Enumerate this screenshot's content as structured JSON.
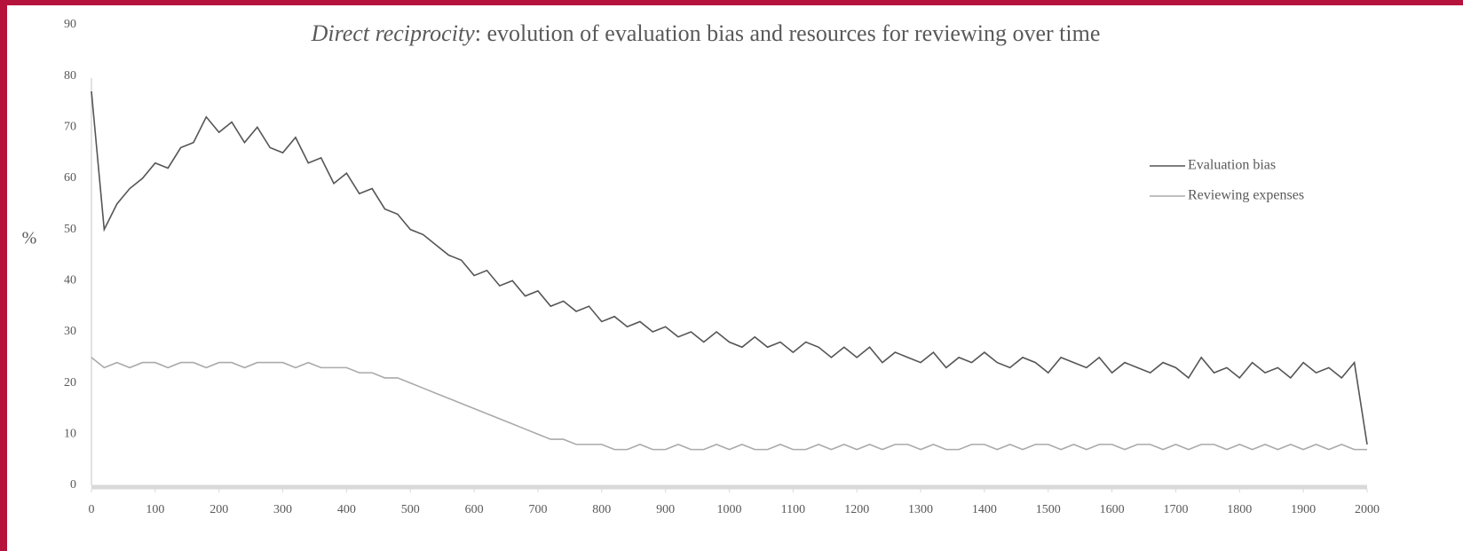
{
  "chart_data": {
    "type": "line",
    "title_emphasis": "Direct reciprocity",
    "title": ": evolution of evaluation bias and resources for reviewing over time",
    "y_label": "%",
    "x": [
      0,
      20,
      40,
      60,
      80,
      100,
      120,
      140,
      160,
      180,
      200,
      220,
      240,
      260,
      280,
      300,
      320,
      340,
      360,
      380,
      400,
      420,
      440,
      460,
      480,
      500,
      520,
      540,
      560,
      580,
      600,
      620,
      640,
      660,
      680,
      700,
      720,
      740,
      760,
      780,
      800,
      820,
      840,
      860,
      880,
      900,
      920,
      940,
      960,
      980,
      1000,
      1020,
      1040,
      1060,
      1080,
      1100,
      1120,
      1140,
      1160,
      1180,
      1200,
      1220,
      1240,
      1260,
      1280,
      1300,
      1320,
      1340,
      1360,
      1380,
      1400,
      1420,
      1440,
      1460,
      1480,
      1500,
      1520,
      1540,
      1560,
      1580,
      1600,
      1620,
      1640,
      1660,
      1680,
      1700,
      1720,
      1740,
      1760,
      1780,
      1800,
      1820,
      1840,
      1860,
      1880,
      1900,
      1920,
      1940,
      1960,
      1980,
      2000
    ],
    "series": [
      {
        "name": "Evaluation bias",
        "color": "#555555",
        "values": [
          77,
          50,
          55,
          58,
          60,
          63,
          62,
          66,
          67,
          72,
          69,
          71,
          67,
          70,
          66,
          65,
          68,
          63,
          64,
          59,
          61,
          57,
          58,
          54,
          53,
          50,
          49,
          47,
          45,
          44,
          41,
          42,
          39,
          40,
          37,
          38,
          35,
          36,
          34,
          35,
          32,
          33,
          31,
          32,
          30,
          31,
          29,
          30,
          28,
          30,
          28,
          27,
          29,
          27,
          28,
          26,
          28,
          27,
          25,
          27,
          25,
          27,
          24,
          26,
          25,
          24,
          26,
          23,
          25,
          24,
          26,
          24,
          23,
          25,
          24,
          22,
          25,
          24,
          23,
          25,
          22,
          24,
          23,
          22,
          24,
          23,
          21,
          25,
          22,
          23,
          21,
          24,
          22,
          23,
          21,
          24,
          22,
          23,
          21,
          24,
          8
        ]
      },
      {
        "name": "Reviewing expenses",
        "color": "#aaaaaa",
        "values": [
          25,
          23,
          24,
          23,
          24,
          24,
          23,
          24,
          24,
          23,
          24,
          24,
          23,
          24,
          24,
          24,
          23,
          24,
          23,
          23,
          23,
          22,
          22,
          21,
          21,
          20,
          19,
          18,
          17,
          16,
          15,
          14,
          13,
          12,
          11,
          10,
          9,
          9,
          8,
          8,
          8,
          7,
          7,
          8,
          7,
          7,
          8,
          7,
          7,
          8,
          7,
          8,
          7,
          7,
          8,
          7,
          7,
          8,
          7,
          8,
          7,
          8,
          7,
          8,
          8,
          7,
          8,
          7,
          7,
          8,
          8,
          7,
          8,
          7,
          8,
          8,
          7,
          8,
          7,
          8,
          8,
          7,
          8,
          8,
          7,
          8,
          7,
          8,
          8,
          7,
          8,
          7,
          8,
          7,
          8,
          7,
          8,
          7,
          8,
          7,
          7
        ]
      }
    ],
    "xlim": [
      0,
      2000
    ],
    "xticks": [
      0,
      100,
      200,
      300,
      400,
      500,
      600,
      700,
      800,
      900,
      1000,
      1100,
      1200,
      1300,
      1400,
      1500,
      1600,
      1700,
      1800,
      1900,
      2000
    ],
    "ylim": [
      0,
      90
    ],
    "yticks": [
      0,
      10,
      20,
      30,
      40,
      50,
      60,
      70,
      80,
      90
    ],
    "grid": false,
    "legend": "right"
  }
}
